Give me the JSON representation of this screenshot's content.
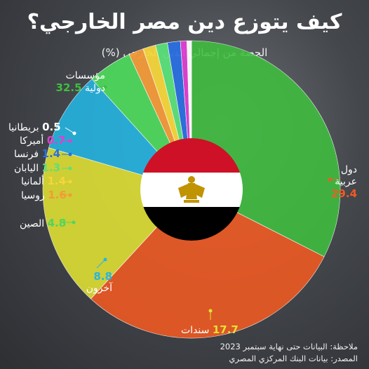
{
  "title": "كيف يتوزع دين مصر الخارجي؟",
  "subtitle": "الحصة من إجمالي الدين الخارجي (%)",
  "note_line1": "ملاحظة: البيانات حتى نهاية سبتمبر 2023",
  "note_line2": "المصدر: بيانات البنك المركزي المصري",
  "chart_data": {
    "type": "pie",
    "title": "كيف يتوزع دين مصر الخارجي؟",
    "subtitle": "الحصة من إجمالي الدين الخارجي (%)",
    "unit": "%",
    "slices": [
      {
        "label": "مؤسسات دولية",
        "value": 32.5,
        "display": "32.5",
        "color": "#3fbf3f"
      },
      {
        "label": "دول عربية",
        "value": 29.4,
        "display": "29.4",
        "color": "#f25a22"
      },
      {
        "label": "سندات",
        "value": 17.7,
        "display": "17.7",
        "color": "#e2e233"
      },
      {
        "label": "آخرون",
        "value": 8.8,
        "display": "8.8",
        "color": "#24b6e4"
      },
      {
        "label": "الصين",
        "value": 4.8,
        "display": "4.8",
        "color": "#4ed65c"
      },
      {
        "label": "روسيا",
        "value": 1.6,
        "display": "1.6",
        "color": "#f39a3a"
      },
      {
        "label": "ألمانيا",
        "value": 1.4,
        "display": "1.4",
        "color": "#f5d53b"
      },
      {
        "label": "اليابان",
        "value": 1.3,
        "display": "1.3",
        "color": "#5be07a"
      },
      {
        "label": "فرنسا",
        "value": 1.4,
        "display": "1.4",
        "color": "#2b6fe0"
      },
      {
        "label": "أميركا",
        "value": 0.7,
        "display": "0.7",
        "color": "#e03fd0"
      },
      {
        "label": "بريطانيا",
        "value": 0.5,
        "display": "0.5",
        "color": "#ffffff"
      }
    ]
  },
  "flag_colors": {
    "red": "#ce1126",
    "white": "#ffffff",
    "black": "#000000",
    "eagle": "#c09300"
  },
  "label_value_colors": {
    "مؤسسات دولية": "#3fbf3f",
    "دول عربية": "#f25a22",
    "سندات": "#e2e233",
    "آخرون": "#24b6e4",
    "الصين": "#4ed65c",
    "روسيا": "#f39a3a",
    "ألمانيا": "#f5d53b",
    "اليابان": "#5be07a",
    "فرنسا": "#2b6fe0",
    "أميركا": "#e03fd0",
    "بريطانيا": "#ffffff"
  }
}
